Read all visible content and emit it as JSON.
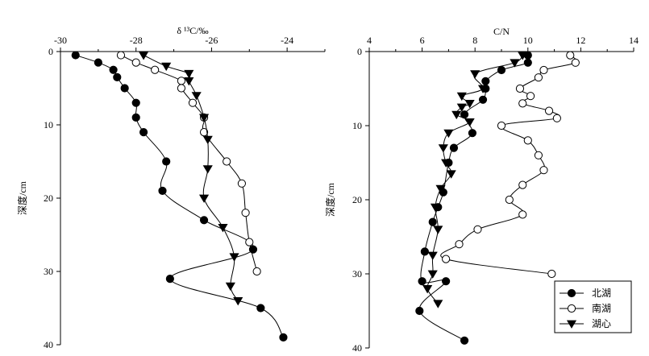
{
  "chart_data": [
    {
      "type": "line",
      "xlabel": "δ ¹³C/‰",
      "ylabel": "深度/cm",
      "xlim": [
        -30,
        -23
      ],
      "ylim": [
        0,
        40
      ],
      "y_reversed": true,
      "x_axis_position": "top",
      "xticks": [
        -30,
        -28,
        -26,
        -24
      ],
      "yticks": [
        0,
        10,
        20,
        30,
        40
      ],
      "grid": false,
      "series": [
        {
          "name": "北湖",
          "marker": "filled-circle",
          "x": [
            -29.6,
            -29.0,
            -28.6,
            -28.5,
            -28.3,
            -28.0,
            -28.0,
            -27.8,
            -27.2,
            -27.3,
            -26.2,
            -24.9,
            -27.1,
            -24.7,
            -24.1
          ],
          "y": [
            0.5,
            1.5,
            2.5,
            3.5,
            5,
            7,
            9,
            11,
            15,
            19,
            23,
            27,
            31,
            35,
            39
          ]
        },
        {
          "name": "南湖",
          "marker": "open-circle",
          "x": [
            -28.4,
            -28.0,
            -27.5,
            -26.8,
            -26.8,
            -26.5,
            -26.2,
            -26.2,
            -25.6,
            -25.2,
            -25.1,
            -25.0,
            -24.8
          ],
          "y": [
            0.5,
            1.5,
            2.5,
            4,
            5,
            7,
            9,
            11,
            15,
            18,
            22,
            26,
            30
          ]
        },
        {
          "name": "湖心",
          "marker": "filled-triangle",
          "x": [
            -27.8,
            -27.2,
            -26.6,
            -26.6,
            -26.4,
            -26.2,
            -26.1,
            -26.1,
            -26.2,
            -25.7,
            -25.4,
            -25.5,
            -25.3
          ],
          "y": [
            0.5,
            2,
            3,
            4,
            6,
            9,
            12,
            16,
            20,
            24,
            28,
            32,
            34
          ]
        }
      ]
    },
    {
      "type": "line",
      "xlabel": "C/N",
      "ylabel": "深度/cm",
      "xlim": [
        4,
        14
      ],
      "ylim": [
        0,
        40
      ],
      "y_reversed": true,
      "x_axis_position": "top",
      "xticks": [
        4,
        6,
        8,
        10,
        12,
        14
      ],
      "yticks": [
        0,
        10,
        20,
        30,
        40
      ],
      "grid": false,
      "legend": {
        "position": "bottom-right",
        "entries": [
          "北湖",
          "南湖",
          "湖心"
        ]
      },
      "series": [
        {
          "name": "北湖",
          "marker": "filled-circle",
          "x": [
            10.0,
            10.0,
            9.0,
            8.4,
            8.4,
            8.3,
            7.6,
            7.9,
            7.2,
            7.0,
            6.8,
            6.6,
            6.4,
            6.1,
            6.0,
            6.9,
            5.9,
            7.6
          ],
          "y": [
            0.5,
            1.5,
            2.5,
            4,
            5,
            6.5,
            8.5,
            11,
            13,
            15,
            19,
            21,
            23,
            27,
            31,
            31,
            35,
            39
          ]
        },
        {
          "name": "南湖",
          "marker": "open-circle",
          "x": [
            11.6,
            11.8,
            10.6,
            10.4,
            9.7,
            10.1,
            9.8,
            10.8,
            11.1,
            9.0,
            10.0,
            10.4,
            10.6,
            9.8,
            9.3,
            9.8,
            8.1,
            7.4,
            6.9,
            10.9
          ],
          "y": [
            0.5,
            1.5,
            2.5,
            3.5,
            5,
            6,
            7,
            8,
            9,
            10,
            12,
            14,
            16,
            18,
            20,
            22,
            24,
            26,
            28,
            30
          ]
        },
        {
          "name": "湖心",
          "marker": "filled-triangle",
          "x": [
            9.8,
            9.5,
            8.0,
            8.3,
            7.5,
            7.8,
            7.5,
            7.3,
            7.8,
            7.0,
            6.8,
            6.9,
            7.1,
            6.7,
            6.5,
            6.6,
            6.4,
            6.4,
            6.2,
            6.6
          ],
          "y": [
            0.5,
            1.5,
            3,
            5,
            6,
            7,
            7.5,
            8.5,
            9.5,
            11,
            13,
            15,
            16.5,
            18.5,
            21,
            24,
            27.5,
            30,
            32,
            34
          ]
        }
      ]
    }
  ]
}
